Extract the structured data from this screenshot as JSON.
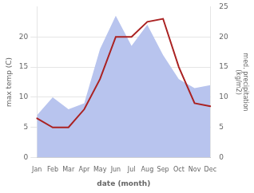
{
  "chart_data": {
    "type": "line",
    "categories": [
      "Jan",
      "Feb",
      "Mar",
      "Apr",
      "May",
      "Jun",
      "Jul",
      "Aug",
      "Sep",
      "Oct",
      "Nov",
      "Dec"
    ],
    "series": [
      {
        "type": "area",
        "axis": "y2",
        "color": "#b8c4ee",
        "values": [
          7.0,
          10.0,
          8.0,
          9.0,
          18.0,
          23.5,
          18.5,
          22.0,
          17.0,
          13.0,
          11.5,
          12.0
        ]
      },
      {
        "type": "line",
        "color": "#aa2222",
        "values": [
          6.5,
          5.0,
          5.0,
          8.0,
          13.0,
          20.0,
          20.0,
          22.5,
          23.0,
          15.0,
          9.0,
          8.5
        ]
      }
    ],
    "xlabel": "date (month)",
    "ylabel": "max temp (C)",
    "y2label": "med. precipitation\n(kg/m2)",
    "ylim": [
      0,
      25
    ],
    "yticks": [
      0,
      5,
      10,
      15,
      20
    ],
    "y2lim": [
      0,
      25
    ],
    "y2ticks": [
      0,
      5,
      10,
      15,
      20,
      25
    ],
    "grid": true
  }
}
